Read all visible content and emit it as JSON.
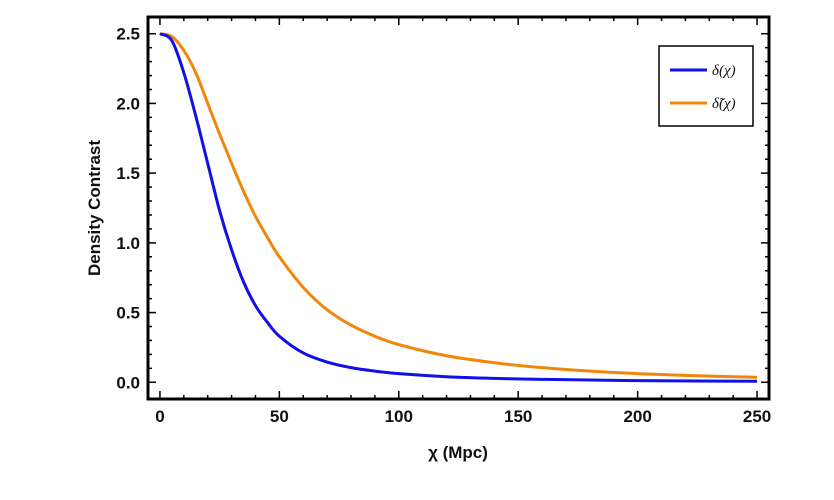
{
  "chart_data": {
    "type": "line",
    "xlabel": "χ (Mpc)",
    "ylabel": "Density Contrast",
    "xlim": [
      -5,
      255
    ],
    "ylim": [
      -0.12,
      2.62
    ],
    "xticks": [
      {
        "value": 0,
        "label": "0"
      },
      {
        "value": 50,
        "label": "50"
      },
      {
        "value": 100,
        "label": "100"
      },
      {
        "value": 150,
        "label": "150"
      },
      {
        "value": 200,
        "label": "200"
      },
      {
        "value": 250,
        "label": "250"
      }
    ],
    "yticks": [
      {
        "value": 0.0,
        "label": "0.0"
      },
      {
        "value": 0.5,
        "label": "0.5"
      },
      {
        "value": 1.0,
        "label": "1.0"
      },
      {
        "value": 1.5,
        "label": "1.5"
      },
      {
        "value": 2.0,
        "label": "2.0"
      },
      {
        "value": 2.5,
        "label": "2.5"
      }
    ],
    "grid": false,
    "legend_position": "top-right",
    "x": [
      0,
      5,
      10,
      15,
      20,
      25,
      30,
      35,
      40,
      45,
      50,
      60,
      70,
      80,
      90,
      100,
      120,
      140,
      160,
      180,
      200,
      225,
      250
    ],
    "series": [
      {
        "name": "δ(χ)",
        "color": "#1010e8",
        "values": [
          2.5,
          2.45,
          2.22,
          1.91,
          1.57,
          1.23,
          0.95,
          0.72,
          0.55,
          0.43,
          0.33,
          0.21,
          0.145,
          0.105,
          0.08,
          0.062,
          0.04,
          0.028,
          0.021,
          0.016,
          0.012,
          0.009,
          0.007
        ]
      },
      {
        "name": "δ̃(χ)",
        "color": "#f0870a",
        "values": [
          2.5,
          2.48,
          2.38,
          2.22,
          2.0,
          1.78,
          1.57,
          1.37,
          1.19,
          1.04,
          0.9,
          0.68,
          0.52,
          0.41,
          0.33,
          0.27,
          0.19,
          0.14,
          0.105,
          0.08,
          0.062,
          0.047,
          0.036
        ]
      }
    ]
  }
}
